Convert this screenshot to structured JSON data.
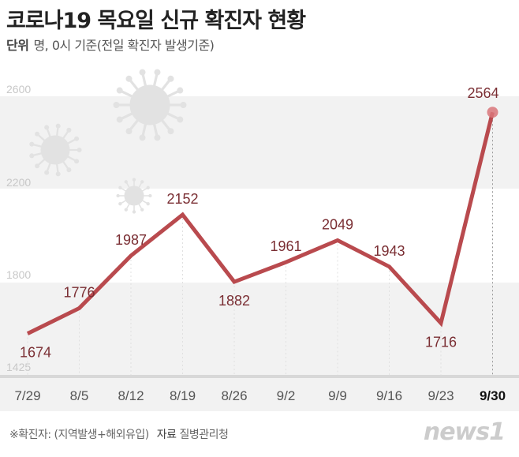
{
  "title": "코로나19 목요일 신규 확진자 현황",
  "subtitle": {
    "unit_label": "단위",
    "unit_text": "명, 0시 기준(전일 확진자 발생기준)"
  },
  "footnote": {
    "note": "※확진자: (지역발생+해외유입)",
    "source_label": "자료",
    "source": "질병관리청"
  },
  "logo": "news1",
  "colors": {
    "line": "#b94a4e",
    "label": "#7a2e33",
    "band": "#f2f2f2",
    "marker": "#d9767a"
  },
  "chart_data": {
    "type": "line",
    "title": "코로나19 목요일 신규 확진자 현황",
    "categories": [
      "7/29",
      "8/5",
      "8/12",
      "8/19",
      "8/26",
      "9/2",
      "9/9",
      "9/16",
      "9/23",
      "9/30"
    ],
    "values": [
      1674,
      1776,
      1987,
      2152,
      1882,
      1961,
      2049,
      1943,
      1716,
      2564
    ],
    "yticks": [
      "2600",
      "2200",
      "1800",
      "1425"
    ],
    "ylim": [
      1425,
      2600
    ],
    "highlight": "9/30",
    "grid": "alternating bands",
    "legend": "none"
  }
}
